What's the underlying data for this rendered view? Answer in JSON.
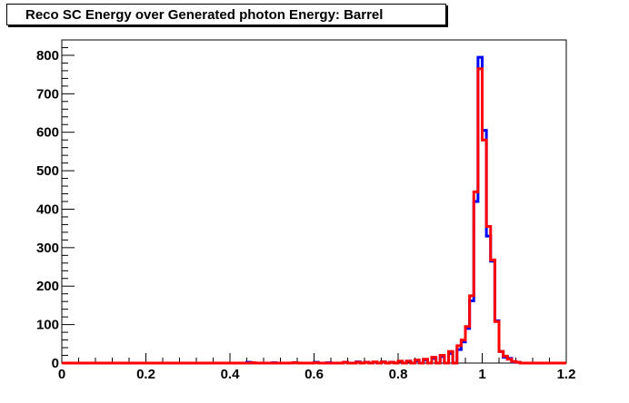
{
  "chart_data": {
    "type": "histogram",
    "title": "Reco SC Energy over Generated photon Energy: Barrel",
    "xlabel": "",
    "ylabel": "",
    "xlim": [
      0,
      1.2
    ],
    "ylim": [
      0,
      840
    ],
    "x_ticks": [
      "0",
      "0.2",
      "0.4",
      "0.6",
      "0.8",
      "1",
      "1.2"
    ],
    "y_ticks": [
      "0",
      "100",
      "200",
      "300",
      "400",
      "500",
      "600",
      "700",
      "800"
    ],
    "grid": false,
    "bin_width": 0.01,
    "series": [
      {
        "color": "#0000ff",
        "bins": [
          [
            0.44,
            2
          ],
          [
            0.5,
            1
          ],
          [
            0.55,
            1
          ],
          [
            0.6,
            2
          ],
          [
            0.63,
            1
          ],
          [
            0.67,
            2
          ],
          [
            0.7,
            3
          ],
          [
            0.72,
            2
          ],
          [
            0.74,
            2
          ],
          [
            0.76,
            3
          ],
          [
            0.78,
            2
          ],
          [
            0.8,
            4
          ],
          [
            0.82,
            5
          ],
          [
            0.84,
            6
          ],
          [
            0.86,
            8
          ],
          [
            0.88,
            12
          ],
          [
            0.9,
            17
          ],
          [
            0.92,
            25
          ],
          [
            0.94,
            35
          ],
          [
            0.95,
            55
          ],
          [
            0.96,
            90
          ],
          [
            0.97,
            162
          ],
          [
            0.98,
            420
          ],
          [
            0.99,
            795
          ],
          [
            1.0,
            605
          ],
          [
            1.01,
            330
          ],
          [
            1.02,
            265
          ],
          [
            1.03,
            110
          ],
          [
            1.04,
            30
          ],
          [
            1.05,
            15
          ],
          [
            1.06,
            12
          ],
          [
            1.07,
            3
          ],
          [
            1.08,
            2
          ]
        ]
      },
      {
        "color": "#ff0000",
        "bins": [
          [
            0.45,
            1
          ],
          [
            0.55,
            1
          ],
          [
            0.6,
            1
          ],
          [
            0.67,
            2
          ],
          [
            0.7,
            2
          ],
          [
            0.72,
            2
          ],
          [
            0.74,
            3
          ],
          [
            0.76,
            3
          ],
          [
            0.78,
            2
          ],
          [
            0.8,
            5
          ],
          [
            0.82,
            5
          ],
          [
            0.84,
            8
          ],
          [
            0.86,
            10
          ],
          [
            0.88,
            15
          ],
          [
            0.9,
            20
          ],
          [
            0.92,
            30
          ],
          [
            0.94,
            45
          ],
          [
            0.95,
            60
          ],
          [
            0.96,
            95
          ],
          [
            0.97,
            175
          ],
          [
            0.98,
            445
          ],
          [
            0.99,
            765
          ],
          [
            1.0,
            580
          ],
          [
            1.01,
            355
          ],
          [
            1.02,
            268
          ],
          [
            1.03,
            108
          ],
          [
            1.04,
            30
          ],
          [
            1.05,
            18
          ],
          [
            1.06,
            10
          ],
          [
            1.07,
            4
          ],
          [
            1.08,
            2
          ]
        ]
      }
    ]
  }
}
